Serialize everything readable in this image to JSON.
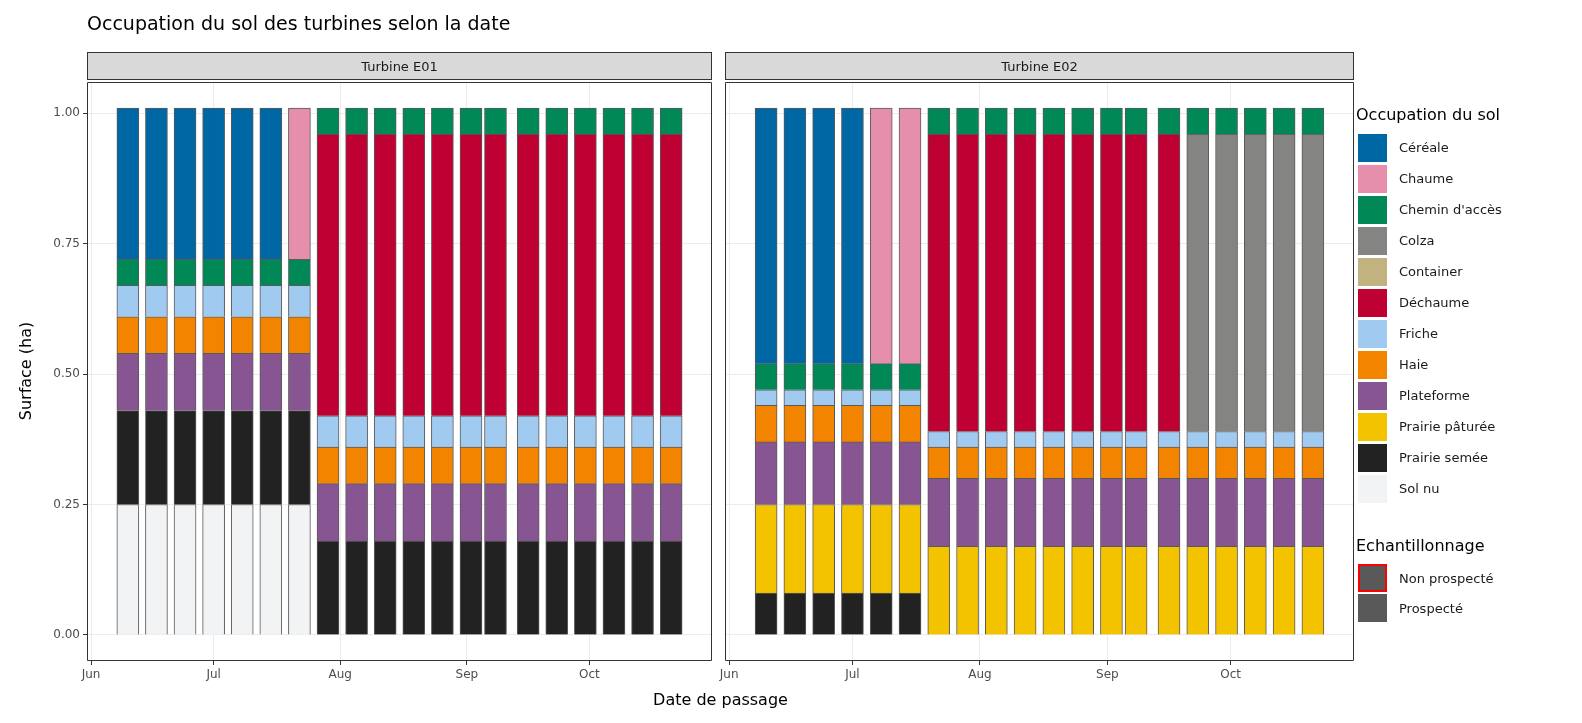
{
  "chart_data": [
    {
      "type": "bar",
      "title": "Occupation du sol des turbines selon la date",
      "subtitle": "Turbine E01",
      "xlabel": "Date de passage",
      "ylabel": "Surface (ha)",
      "stacked": true,
      "grid": true,
      "x": [
        "--06-10",
        "--06-17",
        "--06-24",
        "--07-01",
        "--07-08",
        "--07-15",
        "--07-22",
        "--07-29",
        "--08-05",
        "--08-12",
        "--08-19",
        "--08-26",
        "--09-02",
        "--09-08",
        "--09-16",
        "--09-23",
        "--09-30",
        "--10-07",
        "--10-14",
        "--10-21"
      ],
      "xlim": [
        "--05-31",
        "--10-31"
      ],
      "xticks": [
        {
          "value": "--06-01",
          "label": "Jun"
        },
        {
          "value": "--07-01",
          "label": "Jul"
        },
        {
          "value": "--08-01",
          "label": "Aug"
        },
        {
          "value": "--09-01",
          "label": "Sep"
        },
        {
          "value": "--10-01",
          "label": "Oct"
        }
      ],
      "ylim": [
        -0.05,
        1.06
      ],
      "yticks": [
        {
          "value": 0,
          "label": "0.00"
        },
        {
          "value": 0.25,
          "label": "0.25"
        },
        {
          "value": 0.5,
          "label": "0.50"
        },
        {
          "value": 0.75,
          "label": "0.75"
        },
        {
          "value": 1,
          "label": "1.00"
        }
      ],
      "series": [
        {
          "color": "#f2f3f4",
          "values": [
            0.25,
            0.25,
            0.25,
            0.25,
            0.25,
            0.25,
            0.25,
            null,
            null,
            null,
            null,
            null,
            null,
            null,
            null,
            null,
            null,
            null,
            null,
            null
          ]
        },
        {
          "color": "#222222",
          "values": [
            0.18,
            0.18,
            0.18,
            0.18,
            0.18,
            0.18,
            0.18,
            0.18,
            0.18,
            0.18,
            0.18,
            0.18,
            0.18,
            0.18,
            0.18,
            0.18,
            0.18,
            0.18,
            0.18,
            0.18
          ]
        },
        {
          "color": "#875692",
          "values": [
            0.11,
            0.11,
            0.11,
            0.11,
            0.11,
            0.11,
            0.11,
            0.11,
            0.11,
            0.11,
            0.11,
            0.11,
            0.11,
            0.11,
            0.11,
            0.11,
            0.11,
            0.11,
            0.11,
            0.11
          ]
        },
        {
          "color": "#f38400",
          "values": [
            0.07,
            0.07,
            0.07,
            0.07,
            0.07,
            0.07,
            0.07,
            0.07,
            0.07,
            0.07,
            0.07,
            0.07,
            0.07,
            0.07,
            0.07,
            0.07,
            0.07,
            0.07,
            0.07,
            0.07
          ]
        },
        {
          "color": "#a1caf1",
          "values": [
            0.06,
            0.06,
            0.06,
            0.06,
            0.06,
            0.06,
            0.06,
            0.06,
            0.06,
            0.06,
            0.06,
            0.06,
            0.06,
            0.06,
            0.06,
            0.06,
            0.06,
            0.06,
            0.06,
            0.06
          ]
        },
        {
          "color": "#be0032",
          "values": [
            null,
            null,
            null,
            null,
            null,
            null,
            null,
            0.54,
            0.54,
            0.54,
            0.54,
            0.54,
            0.54,
            0.54,
            0.54,
            0.54,
            0.54,
            0.54,
            0.54,
            0.54
          ]
        },
        {
          "color": "#008856",
          "values": [
            0.05,
            0.05,
            0.05,
            0.05,
            0.05,
            0.05,
            0.05,
            0.05,
            0.05,
            0.05,
            0.05,
            0.05,
            0.05,
            0.05,
            0.05,
            0.05,
            0.05,
            0.05,
            0.05,
            0.05
          ]
        },
        {
          "color": "#e68fac",
          "values": [
            null,
            null,
            null,
            null,
            null,
            null,
            0.29,
            null,
            null,
            null,
            null,
            null,
            null,
            null,
            null,
            null,
            null,
            null,
            null,
            null
          ]
        },
        {
          "color": "#0067a5",
          "values": [
            0.29,
            0.29,
            0.29,
            0.29,
            0.29,
            0.29,
            null,
            null,
            null,
            null,
            null,
            null,
            null,
            null,
            null,
            null,
            null,
            null,
            null,
            null
          ]
        }
      ]
    },
    {
      "type": "bar",
      "subtitle": "Turbine E02",
      "stacked": true,
      "grid": true,
      "tick_labels": "x",
      "legend": "right",
      "legend_title": "Occupation du sol",
      "annotations": [
        "Echantillonnage",
        "Non prospecté",
        "Prospecté"
      ],
      "x": [
        "--06-10",
        "--06-17",
        "--06-24",
        "--07-01",
        "--07-08",
        "--07-15",
        "--07-22",
        "--07-29",
        "--08-05",
        "--08-12",
        "--08-19",
        "--08-26",
        "--09-02",
        "--09-08",
        "--09-16",
        "--09-23",
        "--09-30",
        "--10-07",
        "--10-14",
        "--10-21"
      ],
      "xlim": [
        "--05-31",
        "--10-31"
      ],
      "xticks": [
        {
          "value": "--06-01",
          "label": "Jun"
        },
        {
          "value": "--07-01",
          "label": "Jul"
        },
        {
          "value": "--08-01",
          "label": "Aug"
        },
        {
          "value": "--09-01",
          "label": "Sep"
        },
        {
          "value": "--10-01",
          "label": "Oct"
        }
      ],
      "ylim": [
        -0.05,
        1.06
      ],
      "yticks": [
        0,
        0.25,
        0.5,
        0.75,
        1
      ],
      "series": [
        {
          "name": "Sol nu",
          "color": "#f2f3f4",
          "values": [
            null,
            null,
            null,
            null,
            null,
            null,
            null,
            null,
            null,
            null,
            null,
            null,
            null,
            null,
            null,
            null,
            null,
            null,
            null,
            null
          ]
        },
        {
          "name": "Prairie semée",
          "color": "#222222",
          "values": [
            0.08,
            0.08,
            0.08,
            0.08,
            0.08,
            0.08,
            null,
            null,
            null,
            null,
            null,
            null,
            null,
            null,
            null,
            null,
            null,
            null,
            null,
            null
          ]
        },
        {
          "name": "Prairie pâturée",
          "color": "#f3c300",
          "values": [
            0.17,
            0.17,
            0.17,
            0.17,
            0.17,
            0.17,
            0.17,
            0.17,
            0.17,
            0.17,
            0.17,
            0.17,
            0.17,
            0.17,
            0.17,
            0.17,
            0.17,
            0.17,
            0.17,
            0.17
          ]
        },
        {
          "name": "Plateforme",
          "color": "#875692",
          "values": [
            0.12,
            0.12,
            0.12,
            0.12,
            0.12,
            0.12,
            0.13,
            0.13,
            0.13,
            0.13,
            0.13,
            0.13,
            0.13,
            0.13,
            0.13,
            0.13,
            0.13,
            0.13,
            0.13,
            0.13
          ]
        },
        {
          "name": "Haie",
          "color": "#f38400",
          "values": [
            0.07,
            0.07,
            0.07,
            0.07,
            0.07,
            0.07,
            0.06,
            0.06,
            0.06,
            0.06,
            0.06,
            0.06,
            0.06,
            0.06,
            0.06,
            0.06,
            0.06,
            0.06,
            0.06,
            0.06
          ]
        },
        {
          "name": "Friche",
          "color": "#a1caf1",
          "values": [
            0.03,
            0.03,
            0.03,
            0.03,
            0.03,
            0.03,
            0.03,
            0.03,
            0.03,
            0.03,
            0.03,
            0.03,
            0.03,
            0.03,
            0.03,
            0.03,
            0.03,
            0.03,
            0.03,
            0.03
          ]
        },
        {
          "name": "Déchaume",
          "color": "#be0032",
          "values": [
            null,
            null,
            null,
            null,
            null,
            null,
            0.57,
            0.57,
            0.57,
            0.57,
            0.57,
            0.57,
            0.57,
            0.57,
            0.57,
            null,
            null,
            null,
            null,
            null
          ]
        },
        {
          "name": "Container",
          "color": "#c2b280",
          "values": [
            null,
            null,
            null,
            null,
            null,
            null,
            null,
            null,
            null,
            null,
            null,
            null,
            null,
            null,
            null,
            null,
            null,
            null,
            null,
            null
          ]
        },
        {
          "name": "Colza",
          "color": "#848482",
          "values": [
            null,
            null,
            null,
            null,
            null,
            null,
            null,
            null,
            null,
            null,
            null,
            null,
            null,
            null,
            null,
            0.57,
            0.57,
            0.57,
            0.57,
            0.57
          ]
        },
        {
          "name": "Chemin d'accès",
          "color": "#008856",
          "values": [
            0.05,
            0.05,
            0.05,
            0.05,
            0.05,
            0.05,
            0.05,
            0.05,
            0.05,
            0.05,
            0.05,
            0.05,
            0.05,
            0.05,
            0.05,
            0.05,
            0.05,
            0.05,
            0.05,
            0.05
          ]
        },
        {
          "name": "Chaume",
          "color": "#e68fac",
          "values": [
            null,
            null,
            null,
            null,
            0.49,
            0.49,
            null,
            null,
            null,
            null,
            null,
            null,
            null,
            null,
            null,
            null,
            null,
            null,
            null,
            null
          ]
        },
        {
          "name": "Céréale",
          "color": "#0067a5",
          "values": [
            0.49,
            0.49,
            0.49,
            0.49,
            null,
            null,
            null,
            null,
            null,
            null,
            null,
            null,
            null,
            null,
            null,
            null,
            null,
            null,
            null,
            null
          ]
        }
      ]
    }
  ]
}
